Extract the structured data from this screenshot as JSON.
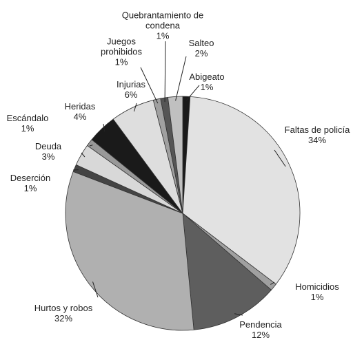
{
  "chart_data": {
    "type": "pie",
    "categories": [
      "Abigeato",
      "Faltas de policía",
      "Homicidios",
      "Pendencia",
      "Hurtos y robos",
      "Deserción",
      "Deuda",
      "Escándalo",
      "Heridas",
      "Injurias",
      "Juegos prohibidos",
      "Quebrantamiento de condena",
      "Salteo"
    ],
    "values": [
      1,
      34,
      1,
      12,
      32,
      1,
      3,
      1,
      4,
      6,
      1,
      1,
      2
    ],
    "value_labels": [
      "1%",
      "34%",
      "1%",
      "12%",
      "32%",
      "1%",
      "3%",
      "1%",
      "4%",
      "6%",
      "1%",
      "1%",
      "2%"
    ],
    "colors": [
      "#1a1a1a",
      "#e2e2e2",
      "#a0a0a0",
      "#5e5e5e",
      "#b0b0b0",
      "#444444",
      "#d8d8d8",
      "#999999",
      "#1a1a1a",
      "#dedede",
      "#a0a0a0",
      "#555555",
      "#c0c0c0"
    ]
  }
}
